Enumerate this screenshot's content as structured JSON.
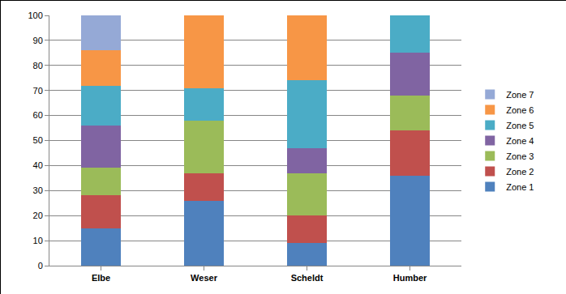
{
  "chart_data": {
    "type": "bar",
    "stacked": true,
    "categories": [
      "Elbe",
      "Weser",
      "Scheldt",
      "Humber"
    ],
    "series": [
      {
        "name": "Zone 1",
        "color": "#4f81bd",
        "values": [
          15,
          26,
          9,
          36
        ]
      },
      {
        "name": "Zone 2",
        "color": "#c0504d",
        "values": [
          13,
          11,
          11,
          18
        ]
      },
      {
        "name": "Zone 3",
        "color": "#9bbb59",
        "values": [
          11,
          21,
          17,
          14
        ]
      },
      {
        "name": "Zone 4",
        "color": "#8064a2",
        "values": [
          17,
          0,
          10,
          17
        ]
      },
      {
        "name": "Zone 5",
        "color": "#4bacc6",
        "values": [
          16,
          13,
          27,
          15
        ]
      },
      {
        "name": "Zone 6",
        "color": "#f79646",
        "values": [
          14,
          29,
          26,
          0
        ]
      },
      {
        "name": "Zone 7",
        "color": "#95a9d6",
        "values": [
          14,
          0,
          0,
          0
        ]
      }
    ],
    "ylim": [
      0,
      100
    ],
    "yticks": [
      0,
      10,
      20,
      30,
      40,
      50,
      60,
      70,
      80,
      90,
      100
    ],
    "grid": true,
    "legend": "right"
  }
}
